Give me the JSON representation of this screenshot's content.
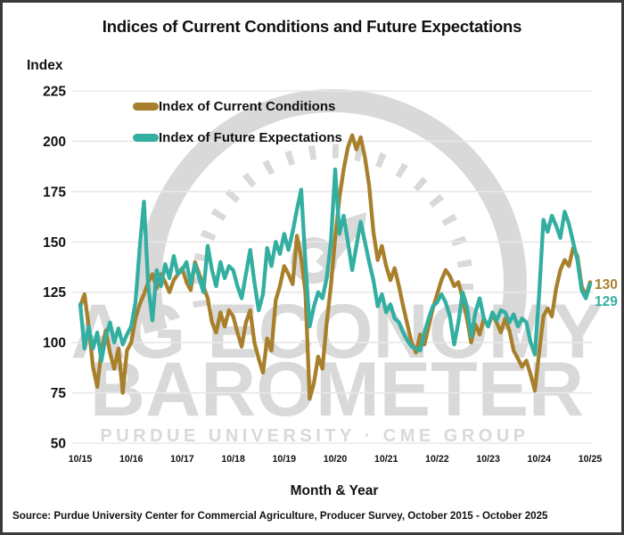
{
  "title": "Indices of Current Conditions and Future Expectations",
  "y_axis_title": "Index",
  "x_axis_title": "Month & Year",
  "source": "Source: Purdue University Center for Commercial Agriculture, Producer Survey, October 2015 - October 2025",
  "legend": [
    {
      "label": "Index of Current Conditions",
      "color": "#A8802C"
    },
    {
      "label": "Index of Future Expectations",
      "color": "#33AFA1"
    }
  ],
  "watermark": {
    "line1": "AG ECONOMY",
    "line2": "BAROMETER",
    "line3": "PURDUE UNIVERSITY · CME GROUP",
    "color": "#d9d9d9"
  },
  "end_labels": [
    {
      "text": "130",
      "color": "#A8802C"
    },
    {
      "text": "129",
      "color": "#33AFA1"
    }
  ],
  "colors": {
    "grid": "#e8e8e8",
    "text": "#111111"
  },
  "chart_data": {
    "type": "line",
    "title": "Indices of Current Conditions and Future Expectations",
    "xlabel": "Month & Year",
    "ylabel": "Index",
    "ylim": [
      50,
      225
    ],
    "y_ticks": [
      225,
      200,
      175,
      150,
      125,
      100,
      75,
      50
    ],
    "x_tick_labels": [
      "10/15",
      "10/16",
      "10/17",
      "10/18",
      "10/19",
      "10/20",
      "10/21",
      "10/22",
      "10/23",
      "10/24",
      "10/25"
    ],
    "x_months_per_tick": 12,
    "grid": true,
    "legend_position": "top-left-inside",
    "last_point_labels": [
      130,
      129
    ],
    "series": [
      {
        "name": "Index of Current Conditions",
        "color": "#A8802C",
        "values": [
          118,
          124,
          108,
          88,
          78,
          96,
          106,
          95,
          87,
          97,
          75,
          96,
          100,
          112,
          119,
          124,
          130,
          134,
          127,
          134,
          130,
          125,
          131,
          134,
          137,
          130,
          126,
          140,
          134,
          128,
          122,
          110,
          105,
          115,
          108,
          116,
          113,
          105,
          98,
          110,
          116,
          100,
          92,
          85,
          102,
          96,
          121,
          128,
          138,
          134,
          129,
          153,
          142,
          125,
          72,
          80,
          93,
          87,
          110,
          128,
          152,
          172,
          186,
          197,
          203,
          196,
          202,
          192,
          178,
          155,
          141,
          148,
          138,
          131,
          137,
          128,
          118,
          109,
          100,
          95,
          104,
          99,
          108,
          117,
          124,
          131,
          136,
          133,
          128,
          130,
          122,
          112,
          100,
          109,
          104,
          112,
          108,
          114,
          110,
          105,
          112,
          106,
          96,
          92,
          88,
          91,
          84,
          76,
          95,
          113,
          117,
          113,
          127,
          136,
          141,
          138,
          147,
          143,
          128,
          123,
          130
        ]
      },
      {
        "name": "Index of Future Expectations",
        "color": "#33AFA1",
        "values": [
          119,
          97,
          108,
          97,
          105,
          91,
          103,
          110,
          100,
          107,
          99,
          104,
          108,
          120,
          147,
          170,
          128,
          111,
          136,
          128,
          139,
          132,
          143,
          134,
          136,
          140,
          129,
          139,
          132,
          125,
          148,
          136,
          128,
          140,
          132,
          138,
          136,
          128,
          122,
          134,
          146,
          130,
          116,
          124,
          147,
          138,
          150,
          144,
          154,
          146,
          155,
          166,
          176,
          140,
          108,
          118,
          125,
          122,
          132,
          150,
          186,
          154,
          163,
          150,
          136,
          148,
          160,
          150,
          140,
          131,
          118,
          124,
          115,
          119,
          112,
          110,
          105,
          101,
          98,
          97,
          96,
          105,
          112,
          118,
          120,
          124,
          120,
          113,
          99,
          110,
          125,
          118,
          103,
          115,
          122,
          112,
          108,
          115,
          111,
          116,
          115,
          110,
          114,
          108,
          112,
          110,
          100,
          94,
          124,
          161,
          155,
          163,
          158,
          152,
          165,
          159,
          150,
          141,
          126,
          122,
          129
        ]
      }
    ]
  }
}
